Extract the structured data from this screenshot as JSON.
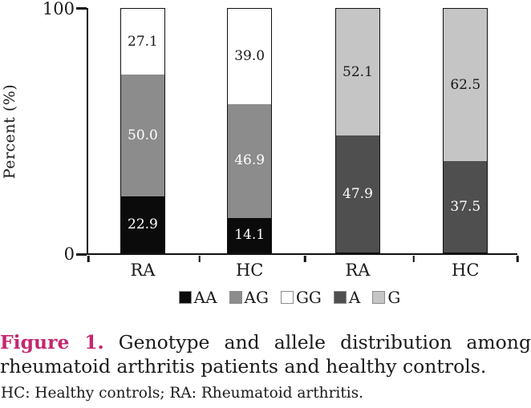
{
  "chart_data": {
    "type": "stacked_bar",
    "ylabel": "Percent (%)",
    "ylim": [
      0,
      100
    ],
    "ytick_labels": [
      "0",
      "100"
    ],
    "grid": false,
    "legend_position": "bottom",
    "categories": [
      "RA",
      "HC",
      "RA",
      "HC"
    ],
    "bars": [
      {
        "category": "RA",
        "segments": [
          {
            "name": "AA",
            "value": 22.9
          },
          {
            "name": "AG",
            "value": 50.0
          },
          {
            "name": "GG",
            "value": 27.1
          }
        ]
      },
      {
        "category": "HC",
        "segments": [
          {
            "name": "AA",
            "value": 14.1
          },
          {
            "name": "AG",
            "value": 46.9
          },
          {
            "name": "GG",
            "value": 39.0
          }
        ]
      },
      {
        "category": "RA",
        "segments": [
          {
            "name": "A",
            "value": 47.9
          },
          {
            "name": "G",
            "value": 52.1
          }
        ]
      },
      {
        "category": "HC",
        "segments": [
          {
            "name": "A",
            "value": 37.5
          },
          {
            "name": "G",
            "value": 62.5
          }
        ]
      }
    ],
    "legend": [
      {
        "label": "AA",
        "color": "#0b0b0b",
        "text_color": "#ffffff"
      },
      {
        "label": "AG",
        "color": "#8c8c8c",
        "text_color": "#ffffff"
      },
      {
        "label": "GG",
        "color": "#ffffff",
        "text_color": "#1a1a1a"
      },
      {
        "label": "A",
        "color": "#4f4f4f",
        "text_color": "#ffffff"
      },
      {
        "label": "G",
        "color": "#c5c5c5",
        "text_color": "#1a1a1a"
      }
    ]
  },
  "caption": {
    "label": "Figure 1.",
    "text": "Genotype and allele distribution among rheumatoid arthritis patients and healthy controls.",
    "accent_color": "#c3276f"
  },
  "footnote": "HC: Healthy controls; RA: Rheumatoid arthritis."
}
